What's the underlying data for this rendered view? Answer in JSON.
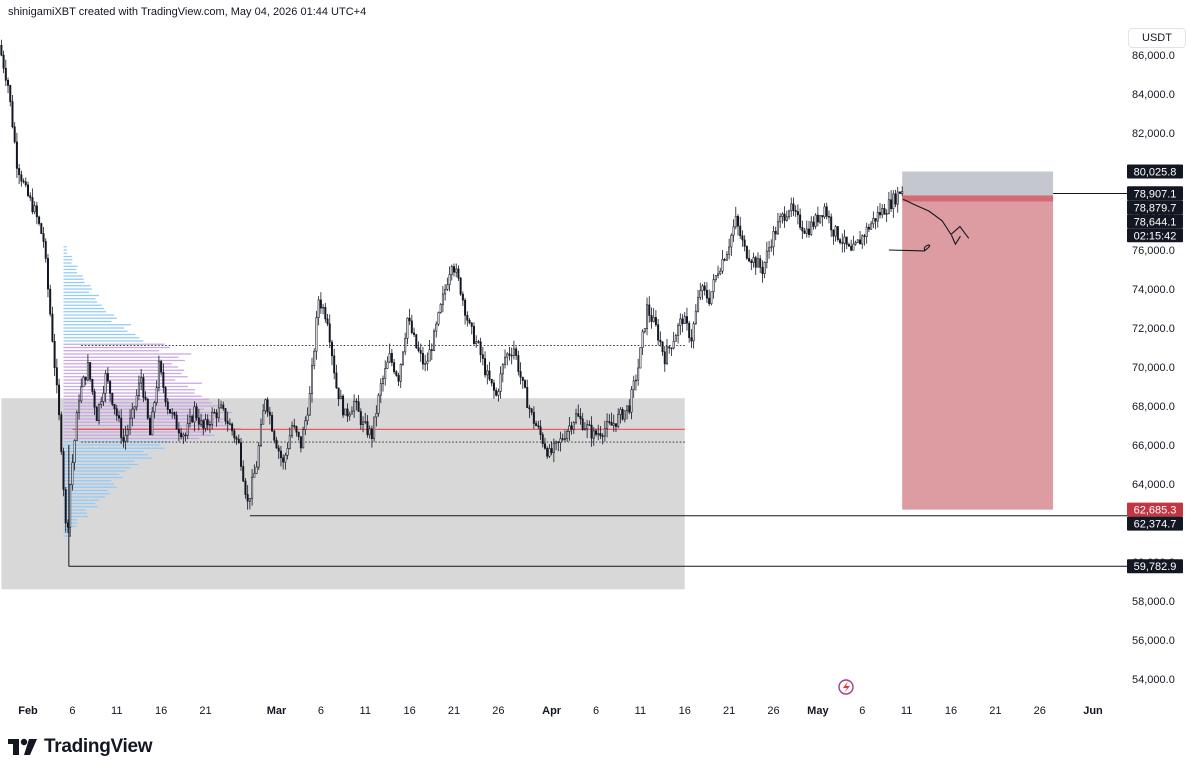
{
  "header": {
    "caption": "shinigamiXBT created with TradingView.com, May 04, 2026 01:44 UTC+4"
  },
  "currency": "USDT",
  "footer": {
    "brand": "TradingView"
  },
  "colors": {
    "candle": "#131722",
    "range_box": "#d6d6d6",
    "short_stop": "#c5c7ce",
    "short_target": "#dc9ca1",
    "short_entry": "#d46a74",
    "poc_line": "#f05a5a",
    "vp_blue": "#90caf9",
    "vp_purple": "#c9a5e6",
    "label_dark": "#131722",
    "label_red": "#c23542"
  },
  "chart_data": {
    "type": "candlestick",
    "symbol_currency": "USDT",
    "ylim": [
      53000,
      87500
    ],
    "y_ticks": [
      54000,
      56000,
      58000,
      60000,
      62000,
      64000,
      66000,
      68000,
      70000,
      72000,
      74000,
      76000,
      78000,
      80000,
      82000,
      84000,
      86000
    ],
    "x_range_days": [
      -3,
      142
    ],
    "x_ticks": [
      {
        "label": "Feb",
        "day": 0,
        "month": true
      },
      {
        "label": "6",
        "day": 5
      },
      {
        "label": "11",
        "day": 10
      },
      {
        "label": "16",
        "day": 15
      },
      {
        "label": "21",
        "day": 20
      },
      {
        "label": "Mar",
        "day": 28,
        "month": true
      },
      {
        "label": "6",
        "day": 33
      },
      {
        "label": "11",
        "day": 38
      },
      {
        "label": "16",
        "day": 43
      },
      {
        "label": "21",
        "day": 48
      },
      {
        "label": "26",
        "day": 53
      },
      {
        "label": "Apr",
        "day": 59,
        "month": true
      },
      {
        "label": "6",
        "day": 64
      },
      {
        "label": "11",
        "day": 69
      },
      {
        "label": "16",
        "day": 74
      },
      {
        "label": "21",
        "day": 79
      },
      {
        "label": "26",
        "day": 84
      },
      {
        "label": "May",
        "day": 89,
        "month": true
      },
      {
        "label": "6",
        "day": 94
      },
      {
        "label": "11",
        "day": 99
      },
      {
        "label": "16",
        "day": 104
      },
      {
        "label": "21",
        "day": 109
      },
      {
        "label": "26",
        "day": 114
      },
      {
        "label": "Jun",
        "day": 120,
        "month": true
      }
    ],
    "price_path": [
      [
        -3,
        86500
      ],
      [
        -2,
        84500
      ],
      [
        -1,
        80500
      ],
      [
        0,
        79000
      ],
      [
        1,
        78000
      ],
      [
        2,
        76500
      ],
      [
        3,
        71500
      ],
      [
        4,
        66000
      ],
      [
        4.6,
        61000
      ],
      [
        5,
        64000
      ],
      [
        6,
        68500
      ],
      [
        7,
        70000
      ],
      [
        8,
        67500
      ],
      [
        9,
        69500
      ],
      [
        10,
        68000
      ],
      [
        11,
        66200
      ],
      [
        12,
        67500
      ],
      [
        13,
        69500
      ],
      [
        14,
        66500
      ],
      [
        15,
        70000
      ],
      [
        16,
        68000
      ],
      [
        17,
        67000
      ],
      [
        18,
        66500
      ],
      [
        19,
        67800
      ],
      [
        20,
        66800
      ],
      [
        21,
        67500
      ],
      [
        22,
        67800
      ],
      [
        23,
        67000
      ],
      [
        24,
        66000
      ],
      [
        25,
        63000
      ],
      [
        26,
        65000
      ],
      [
        27,
        68500
      ],
      [
        28,
        66500
      ],
      [
        29,
        65000
      ],
      [
        30,
        67000
      ],
      [
        31,
        66000
      ],
      [
        32,
        68500
      ],
      [
        33,
        73500
      ],
      [
        34,
        72500
      ],
      [
        35,
        69000
      ],
      [
        36,
        67500
      ],
      [
        37,
        68200
      ],
      [
        38,
        67000
      ],
      [
        39,
        66500
      ],
      [
        40,
        69000
      ],
      [
        41,
        70500
      ],
      [
        42,
        69500
      ],
      [
        43,
        72500
      ],
      [
        44,
        71000
      ],
      [
        45,
        70000
      ],
      [
        46,
        71500
      ],
      [
        47,
        73500
      ],
      [
        48,
        75500
      ],
      [
        49,
        74000
      ],
      [
        50,
        72000
      ],
      [
        51,
        71000
      ],
      [
        52,
        69500
      ],
      [
        53,
        68500
      ],
      [
        54,
        70500
      ],
      [
        55,
        71000
      ],
      [
        56,
        69000
      ],
      [
        57,
        67500
      ],
      [
        58,
        66500
      ],
      [
        59,
        65500
      ],
      [
        60,
        66000
      ],
      [
        61,
        66800
      ],
      [
        62,
        67500
      ],
      [
        63,
        67000
      ],
      [
        64,
        66500
      ],
      [
        65,
        66800
      ],
      [
        66,
        67000
      ],
      [
        67,
        67500
      ],
      [
        68,
        68000
      ],
      [
        69,
        70000
      ],
      [
        70,
        73000
      ],
      [
        71,
        72000
      ],
      [
        72,
        70500
      ],
      [
        73,
        71500
      ],
      [
        74,
        72500
      ],
      [
        75,
        71500
      ],
      [
        76,
        74000
      ],
      [
        77,
        73500
      ],
      [
        78,
        75000
      ],
      [
        79,
        76000
      ],
      [
        80,
        77500
      ],
      [
        81,
        76000
      ],
      [
        82,
        75500
      ],
      [
        83,
        75000
      ],
      [
        84,
        76500
      ],
      [
        85,
        77500
      ],
      [
        86,
        78200
      ],
      [
        87,
        77500
      ],
      [
        88,
        77000
      ],
      [
        89,
        77500
      ],
      [
        90,
        78200
      ],
      [
        91,
        77000
      ],
      [
        92,
        76500
      ],
      [
        93,
        75800
      ],
      [
        94,
        76500
      ],
      [
        95,
        77200
      ],
      [
        96,
        77800
      ],
      [
        97,
        78200
      ],
      [
        98,
        78700
      ],
      [
        98.6,
        79100
      ]
    ],
    "projection": [
      [
        98.6,
        78600
      ],
      [
        100,
        78300
      ],
      [
        101.5,
        78000
      ],
      [
        103,
        77500
      ],
      [
        104,
        76800
      ],
      [
        105,
        77200
      ],
      [
        106,
        76600
      ]
    ],
    "projection_arrow_tip": [
      104.5,
      76300
    ],
    "annotation_curve": [
      [
        97,
        76000
      ],
      [
        99,
        75900
      ],
      [
        101,
        75950
      ],
      [
        102,
        76000
      ]
    ],
    "range_box": {
      "x0": -3,
      "x1": 74,
      "y0": 58600,
      "y1": 68400
    },
    "short_position": {
      "x0": 98.5,
      "x1": 115.5,
      "stop_top": 80025.8,
      "entry": 78644.1,
      "target": 62685.3
    },
    "poc_line": {
      "x0": 5,
      "x1": 74,
      "price": 66800
    },
    "value_area_lines": [
      {
        "price": 71100,
        "x0": 6,
        "x1": 74
      },
      {
        "price": 66150,
        "x0": 6,
        "x1": 74
      }
    ],
    "level_lines": [
      {
        "price": 78900,
        "x0": 98.4,
        "x1": 130
      },
      {
        "price": 62374.7,
        "x0": 25,
        "x1": 130
      },
      {
        "price": 59782.9,
        "x0": 4.6,
        "x1": 130
      }
    ],
    "volume_profile": {
      "x_start_day": 4,
      "x_max_span_days": 20,
      "bins": [
        {
          "price": 76000,
          "vol": 0.02,
          "color": "blue"
        },
        {
          "price": 75500,
          "vol": 0.05,
          "color": "blue"
        },
        {
          "price": 75000,
          "vol": 0.08,
          "color": "blue"
        },
        {
          "price": 74500,
          "vol": 0.12,
          "color": "blue"
        },
        {
          "price": 74000,
          "vol": 0.16,
          "color": "blue"
        },
        {
          "price": 73500,
          "vol": 0.2,
          "color": "blue"
        },
        {
          "price": 73000,
          "vol": 0.24,
          "color": "blue"
        },
        {
          "price": 72500,
          "vol": 0.3,
          "color": "blue"
        },
        {
          "price": 72000,
          "vol": 0.38,
          "color": "blue"
        },
        {
          "price": 71500,
          "vol": 0.45,
          "color": "blue"
        },
        {
          "price": 71000,
          "vol": 0.6,
          "color": "purple"
        },
        {
          "price": 70500,
          "vol": 0.72,
          "color": "purple"
        },
        {
          "price": 70000,
          "vol": 0.68,
          "color": "purple"
        },
        {
          "price": 69500,
          "vol": 0.7,
          "color": "purple"
        },
        {
          "price": 69000,
          "vol": 0.78,
          "color": "purple"
        },
        {
          "price": 68500,
          "vol": 0.82,
          "color": "purple"
        },
        {
          "price": 68000,
          "vol": 0.88,
          "color": "purple"
        },
        {
          "price": 67500,
          "vol": 0.95,
          "color": "purple"
        },
        {
          "price": 67000,
          "vol": 1.0,
          "color": "purple"
        },
        {
          "price": 66500,
          "vol": 0.85,
          "color": "purple"
        },
        {
          "price": 66000,
          "vol": 0.6,
          "color": "blue"
        },
        {
          "price": 65500,
          "vol": 0.5,
          "color": "blue"
        },
        {
          "price": 65000,
          "vol": 0.42,
          "color": "blue"
        },
        {
          "price": 64500,
          "vol": 0.35,
          "color": "blue"
        },
        {
          "price": 64000,
          "vol": 0.3,
          "color": "blue"
        },
        {
          "price": 63500,
          "vol": 0.26,
          "color": "blue"
        },
        {
          "price": 63000,
          "vol": 0.2,
          "color": "blue"
        },
        {
          "price": 62500,
          "vol": 0.14,
          "color": "blue"
        },
        {
          "price": 62000,
          "vol": 0.08,
          "color": "blue"
        },
        {
          "price": 61500,
          "vol": 0.04,
          "color": "blue"
        }
      ]
    },
    "price_labels": [
      {
        "text": "80,025.8",
        "price": 80025.8,
        "style": "dark"
      },
      {
        "text": "78,907.1",
        "price": 78907.1,
        "style": "dark"
      },
      {
        "text": "78,879.7",
        "price": 78879.7,
        "style": "dark"
      },
      {
        "text": "78,644.1",
        "price": 78644.1,
        "style": "dark"
      },
      {
        "text": "02:15:42",
        "price": 78644.1,
        "style": "dark",
        "sub": true
      },
      {
        "text": "62,685.3",
        "price": 62685.3,
        "style": "red"
      },
      {
        "text": "62,374.7",
        "price": 62374.7,
        "style": "dark"
      },
      {
        "text": "59,782.9",
        "price": 59782.9,
        "style": "dark"
      }
    ]
  }
}
